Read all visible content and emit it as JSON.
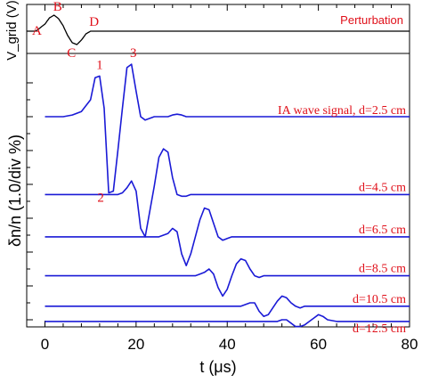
{
  "chart_data": {
    "type": "line",
    "x": [
      0,
      2,
      4,
      6,
      8,
      10,
      11,
      12,
      13,
      14,
      15,
      16,
      17,
      18,
      19,
      20,
      21,
      22,
      23,
      24,
      25,
      26,
      27,
      28,
      29,
      30,
      31,
      32,
      33,
      34,
      35,
      36,
      37,
      38,
      39,
      40,
      41,
      42,
      43,
      44,
      45,
      46,
      47,
      48,
      49,
      50,
      51,
      52,
      53,
      54,
      55,
      56,
      57,
      58,
      59,
      60,
      61,
      62,
      64,
      66,
      68,
      70,
      72,
      74,
      76,
      78,
      80
    ],
    "xlim": [
      -4,
      80
    ],
    "xticks": [
      0,
      20,
      40,
      60,
      80
    ],
    "xlabel": "t (μs)",
    "ylabel": "δn/n (1.0/div %)",
    "perturbation": {
      "ylabel": "V_grid (V)",
      "name": "Perturbation",
      "x": [
        -4,
        -2,
        0,
        1,
        2,
        3,
        4,
        5,
        6,
        7,
        8,
        9,
        10,
        12,
        20,
        40,
        60,
        80
      ],
      "values": [
        0,
        0,
        0.4,
        0.75,
        0.9,
        0.7,
        0.3,
        -0.25,
        -0.65,
        -0.75,
        -0.5,
        -0.15,
        0,
        0,
        0,
        0,
        0,
        0
      ],
      "point_labels": [
        {
          "label": "A",
          "x": 0
        },
        {
          "label": "B",
          "x": 2
        },
        {
          "label": "C",
          "x": 7
        },
        {
          "label": "D",
          "x": 10
        }
      ]
    },
    "series": [
      {
        "name": "IA wave signal, d=2.5 cm",
        "offset": 0,
        "values": [
          0,
          0,
          0,
          0.1,
          0.3,
          1.0,
          2.3,
          2.4,
          0.5,
          -4.5,
          -4.4,
          -2.0,
          0.5,
          2.9,
          3.1,
          1.5,
          0,
          -0.2,
          -0.1,
          0,
          0,
          0,
          0,
          0.1,
          0.15,
          0.1,
          0,
          0,
          0,
          0,
          0,
          0,
          0,
          0,
          0,
          0,
          0,
          0,
          0,
          0,
          0,
          0,
          0,
          0,
          0,
          0,
          0,
          0,
          0,
          0,
          0,
          0,
          0,
          0,
          0,
          0,
          0,
          0,
          0,
          0,
          0,
          0,
          0,
          0,
          0,
          0,
          0
        ]
      },
      {
        "name": "d=4.5 cm",
        "offset": -4.6,
        "values": [
          0,
          0,
          0,
          0,
          0,
          0,
          0,
          0,
          0,
          0,
          0,
          0,
          0.1,
          0.4,
          0.8,
          0.2,
          -2.0,
          -2.5,
          -1.0,
          0.5,
          2.2,
          2.7,
          2.5,
          1.0,
          0,
          -0.1,
          -0.1,
          0,
          0,
          0,
          0,
          0,
          0,
          0,
          0,
          0,
          0,
          0,
          0,
          0,
          0,
          0,
          0,
          0,
          0,
          0,
          0,
          0,
          0,
          0,
          0,
          0,
          0,
          0,
          0,
          0,
          0,
          0,
          0,
          0,
          0,
          0,
          0,
          0,
          0,
          0,
          0
        ]
      },
      {
        "name": "d=6.5 cm",
        "offset": -7.1,
        "values": [
          0,
          0,
          0,
          0,
          0,
          0,
          0,
          0,
          0,
          0,
          0,
          0,
          0,
          0,
          0,
          0,
          0,
          0,
          0,
          0,
          0,
          0.1,
          0.2,
          0.5,
          0.3,
          -1.0,
          -1.7,
          -1.0,
          0,
          1.0,
          1.7,
          1.6,
          0.8,
          0,
          -0.2,
          -0.1,
          0,
          0,
          0,
          0,
          0,
          0,
          0,
          0,
          0,
          0,
          0,
          0,
          0,
          0,
          0,
          0,
          0,
          0,
          0,
          0,
          0,
          0,
          0,
          0,
          0,
          0,
          0,
          0,
          0,
          0,
          0
        ]
      },
      {
        "name": "d=8.5 cm",
        "offset": -9.4,
        "values": [
          0,
          0,
          0,
          0,
          0,
          0,
          0,
          0,
          0,
          0,
          0,
          0,
          0,
          0,
          0,
          0,
          0,
          0,
          0,
          0,
          0,
          0,
          0,
          0,
          0,
          0,
          0,
          0,
          0,
          0.1,
          0.2,
          0.4,
          0.1,
          -0.7,
          -1.2,
          -0.8,
          0,
          0.7,
          1.0,
          0.9,
          0.4,
          0,
          -0.1,
          0,
          0,
          0,
          0,
          0,
          0,
          0,
          0,
          0,
          0,
          0,
          0,
          0,
          0,
          0,
          0,
          0,
          0,
          0,
          0,
          0,
          0,
          0,
          0
        ]
      },
      {
        "name": "d=10.5 cm",
        "offset": -11.2,
        "values": [
          0,
          0,
          0,
          0,
          0,
          0,
          0,
          0,
          0,
          0,
          0,
          0,
          0,
          0,
          0,
          0,
          0,
          0,
          0,
          0,
          0,
          0,
          0,
          0,
          0,
          0,
          0,
          0,
          0,
          0,
          0,
          0,
          0,
          0,
          0,
          0,
          0,
          0,
          0,
          0.1,
          0.2,
          0.2,
          -0.3,
          -0.6,
          -0.5,
          -0.1,
          0.3,
          0.6,
          0.5,
          0.2,
          0,
          -0.1,
          0,
          0,
          0,
          0,
          0,
          0,
          0,
          0,
          0,
          0,
          0,
          0,
          0,
          0,
          0
        ]
      },
      {
        "name": "d=12.5 cm",
        "offset": -12.1,
        "values": [
          0,
          0,
          0,
          0,
          0,
          0,
          0,
          0,
          0,
          0,
          0,
          0,
          0,
          0,
          0,
          0,
          0,
          0,
          0,
          0,
          0,
          0,
          0,
          0,
          0,
          0,
          0,
          0,
          0,
          0,
          0,
          0,
          0,
          0,
          0,
          0,
          0,
          0,
          0,
          0,
          0,
          0,
          0,
          0,
          0,
          0,
          0,
          0.1,
          0.1,
          -0.1,
          -0.3,
          -0.3,
          -0.2,
          0,
          0.2,
          0.4,
          0.3,
          0.1,
          0,
          0,
          0,
          0,
          0,
          0,
          0,
          0,
          0
        ]
      }
    ],
    "peak_labels": [
      {
        "label": "1",
        "x": 12
      },
      {
        "label": "2",
        "x": 14
      },
      {
        "label": "3",
        "x": 19
      }
    ],
    "colors": {
      "signal": "#1a1ad6",
      "perturbation": "#000000",
      "annotation": "#e0101a"
    }
  }
}
